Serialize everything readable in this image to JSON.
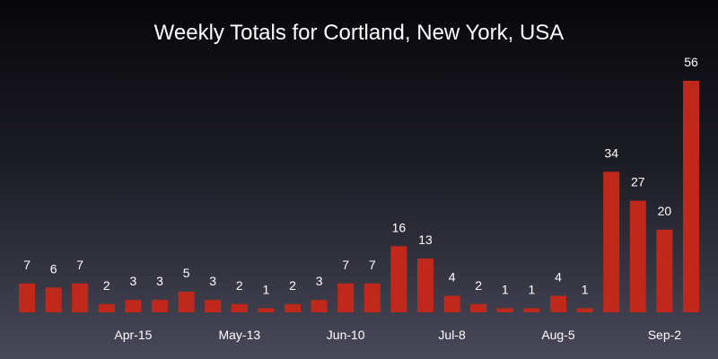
{
  "chart_data": {
    "type": "bar",
    "title": "Weekly Totals for Cortland, New York, USA",
    "xlabel": "",
    "ylabel": "",
    "ylim": [
      0,
      56
    ],
    "grid": false,
    "bar_color": "#c0281c",
    "values": [
      7,
      6,
      7,
      2,
      3,
      3,
      5,
      3,
      2,
      1,
      2,
      3,
      7,
      7,
      16,
      13,
      4,
      2,
      1,
      1,
      4,
      1,
      34,
      27,
      20,
      56
    ],
    "x_tick_labels": [
      {
        "index": 4,
        "label": "Apr-15"
      },
      {
        "index": 8,
        "label": "May-13"
      },
      {
        "index": 12,
        "label": "Jun-10"
      },
      {
        "index": 16,
        "label": "Jul-8"
      },
      {
        "index": 20,
        "label": "Aug-5"
      },
      {
        "index": 24,
        "label": "Sep-2"
      }
    ]
  }
}
